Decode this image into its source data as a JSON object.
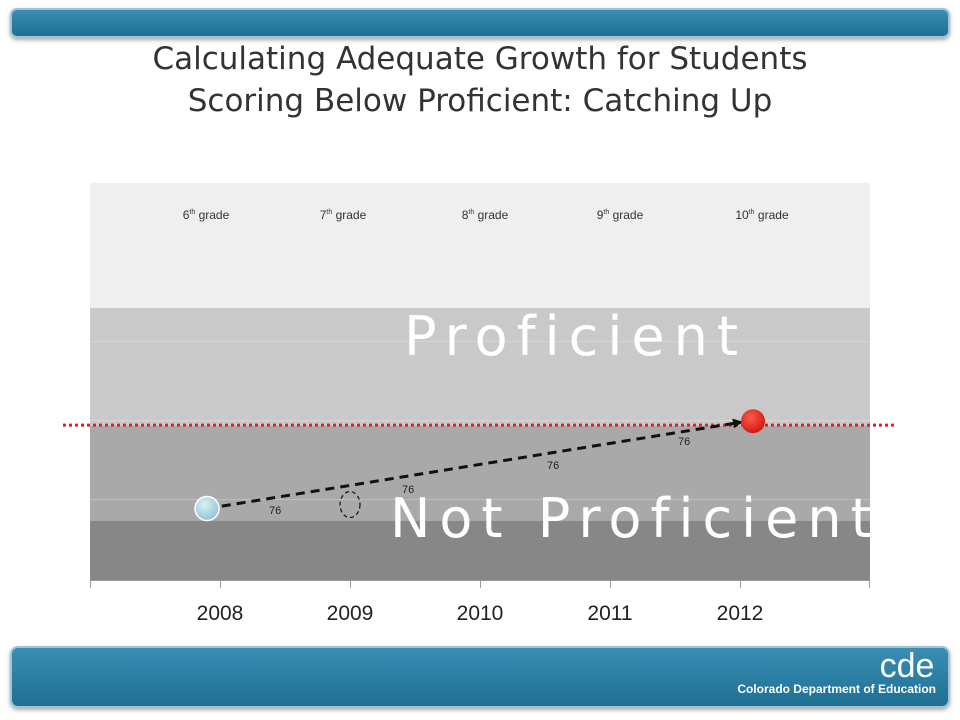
{
  "title": {
    "line1": "Calculating Adequate Growth for Students",
    "line2": "Scoring Below Proficient: Catching Up"
  },
  "colors": {
    "bar": "#1d6f94",
    "cut_line": "#e0201f",
    "start_point": "#9fd0de",
    "end_point": "#e0201f"
  },
  "chart_data": {
    "type": "line",
    "x": [
      2008,
      2009,
      2010,
      2011,
      2012
    ],
    "grade_labels": [
      {
        "num": "6",
        "sup": "th",
        "text": "grade"
      },
      {
        "num": "7",
        "sup": "th",
        "text": "grade"
      },
      {
        "num": "8",
        "sup": "th",
        "text": "grade"
      },
      {
        "num": "9",
        "sup": "th",
        "text": "grade"
      },
      {
        "num": "10",
        "sup": "th",
        "text": "grade"
      }
    ],
    "band_labels": {
      "proficient": "Proficient",
      "not_proficient": "Not Proficient"
    },
    "growth_labels": [
      "76",
      "76",
      "76",
      "76"
    ],
    "xlim": [
      2007,
      2013
    ],
    "ylim": [
      0,
      100
    ],
    "cut_score": 39,
    "path": [
      {
        "x": 2007.9,
        "y": 18
      },
      {
        "x": 2012.1,
        "y": 40
      }
    ],
    "projected_2009": 19,
    "grid": true,
    "legend": "none"
  },
  "logo": {
    "mark": "cde",
    "name": "Colorado Department of Education"
  }
}
